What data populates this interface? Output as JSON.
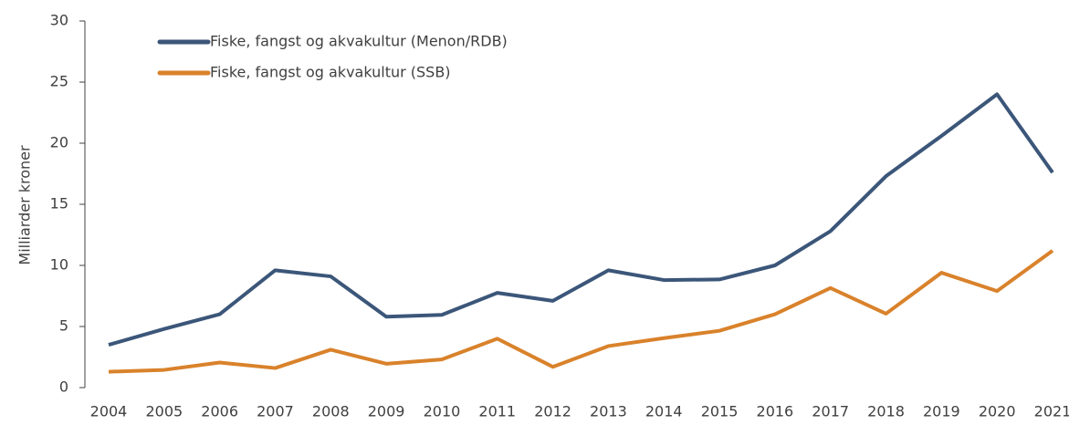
{
  "chart_data": {
    "type": "line",
    "y_label": "Milliarder kroner",
    "categories": [
      "2004",
      "2005",
      "2006",
      "2007",
      "2008",
      "2009",
      "2010",
      "2011",
      "2012",
      "2013",
      "2014",
      "2015",
      "2016",
      "2017",
      "2018",
      "2019",
      "2020",
      "2021"
    ],
    "series": [
      {
        "name": "Fiske, fangst og akvakultur (Menon/RDB)",
        "color": "#3b5679",
        "values": [
          3.5,
          4.8,
          6.0,
          9.6,
          9.1,
          5.8,
          5.95,
          7.75,
          7.1,
          9.6,
          8.8,
          8.85,
          10.0,
          12.8,
          17.3,
          20.6,
          24.0,
          17.6
        ]
      },
      {
        "name": "Fiske, fangst og akvakultur (SSB)",
        "color": "#d9822b",
        "values": [
          1.3,
          1.45,
          2.05,
          1.6,
          3.1,
          1.95,
          2.3,
          4.0,
          1.7,
          3.4,
          4.05,
          4.65,
          6.0,
          8.15,
          6.05,
          9.4,
          7.9,
          11.2
        ]
      }
    ],
    "ylim": [
      0,
      30
    ],
    "yticks": [
      0,
      5,
      10,
      15,
      20,
      25,
      30
    ],
    "grid": false,
    "legend": "top-left"
  }
}
